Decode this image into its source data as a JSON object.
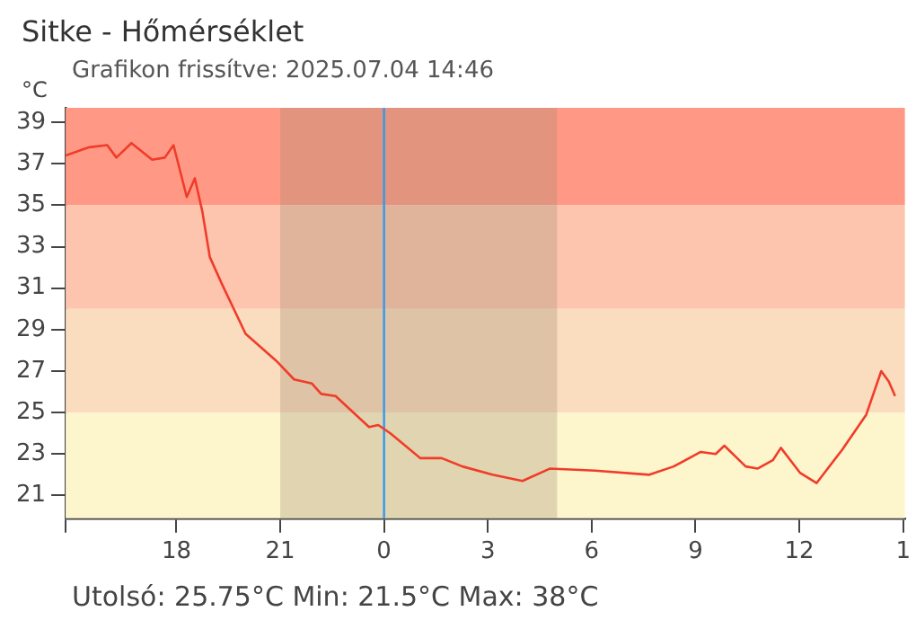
{
  "chart_data": {
    "type": "line",
    "title": "Sitke - Hőmérséklet",
    "subtitle": "Grafikon frissítve: 2025.07.04 14:46",
    "ylabel": "°C",
    "annotations": [
      "Utolsó: 25.75°C  Min: 21.5°C  Max: 38°C"
    ],
    "xlim": [
      "2025-07-03T14:48",
      "2025-07-04T15:03"
    ],
    "xticks": [
      {
        "value": "2025-07-03T14:48",
        "label": null
      },
      {
        "value": "2025-07-03T18:00",
        "label": "18"
      },
      {
        "value": "2025-07-03T21:00",
        "label": "21"
      },
      {
        "value": "2025-07-04T00:00",
        "label": "0"
      },
      {
        "value": "2025-07-04T03:00",
        "label": "3"
      },
      {
        "value": "2025-07-04T06:00",
        "label": "6"
      },
      {
        "value": "2025-07-04T09:00",
        "label": "9"
      },
      {
        "value": "2025-07-04T12:00",
        "label": "12"
      },
      {
        "value": "2025-07-04T15:00",
        "label": "1"
      }
    ],
    "ylim": [
      19.9,
      39.7
    ],
    "yticks": [
      21,
      23,
      25,
      27,
      29,
      31,
      33,
      35,
      37,
      39
    ],
    "grid": false,
    "legend": false,
    "marker": "none",
    "line_style": "solid",
    "bands": [
      {
        "axis": "y",
        "from": 35,
        "to": 39.7,
        "color": "#ff9985"
      },
      {
        "axis": "y",
        "from": 30,
        "to": 35,
        "color": "#fdc4ae"
      },
      {
        "axis": "y",
        "from": 25,
        "to": 30,
        "color": "#fadcbe"
      },
      {
        "axis": "y",
        "from": 19.9,
        "to": 25,
        "color": "#fdf5cc"
      },
      {
        "axis": "x",
        "from": "2025-07-03T21:00",
        "to": "2025-07-04T05:00",
        "color": "#a08a70"
      }
    ],
    "ref_lines": [
      {
        "axis": "x",
        "value": "2025-07-04T00:00",
        "color": "#3399ee"
      }
    ],
    "series": [
      {
        "color": "#f03c2a",
        "x": [
          "2025-07-03T14:48",
          "2025-07-03T15:29",
          "2025-07-03T16:00",
          "2025-07-03T16:16",
          "2025-07-03T16:42",
          "2025-07-03T17:18",
          "2025-07-03T17:40",
          "2025-07-03T17:55",
          "2025-07-03T18:18",
          "2025-07-03T18:32",
          "2025-07-03T18:45",
          "2025-07-03T18:58",
          "2025-07-03T19:19",
          "2025-07-03T20:00",
          "2025-07-03T20:53",
          "2025-07-03T21:24",
          "2025-07-03T21:55",
          "2025-07-03T22:11",
          "2025-07-03T22:36",
          "2025-07-03T23:34",
          "2025-07-03T23:50",
          "2025-07-04T00:11",
          "2025-07-04T01:03",
          "2025-07-04T01:40",
          "2025-07-04T02:16",
          "2025-07-04T03:08",
          "2025-07-04T04:00",
          "2025-07-04T04:48",
          "2025-07-04T06:06",
          "2025-07-04T07:40",
          "2025-07-04T08:22",
          "2025-07-04T09:09",
          "2025-07-04T09:35",
          "2025-07-04T09:50",
          "2025-07-04T10:27",
          "2025-07-04T10:48",
          "2025-07-04T11:14",
          "2025-07-04T11:28",
          "2025-07-04T12:01",
          "2025-07-04T12:30",
          "2025-07-04T13:14",
          "2025-07-04T13:56",
          "2025-07-04T14:22",
          "2025-07-04T14:35",
          "2025-07-04T14:46"
        ],
        "values": [
          37.4,
          37.8,
          37.9,
          37.3,
          38.0,
          37.2,
          37.3,
          37.9,
          35.4,
          36.3,
          34.7,
          32.5,
          31.2,
          28.8,
          27.5,
          26.6,
          26.4,
          25.9,
          25.8,
          24.3,
          24.4,
          24.0,
          22.8,
          22.8,
          22.4,
          22.0,
          21.7,
          22.3,
          22.2,
          22.0,
          22.4,
          23.1,
          23.0,
          23.4,
          22.4,
          22.3,
          22.7,
          23.3,
          22.1,
          21.6,
          23.2,
          24.9,
          27.0,
          26.5,
          25.8
        ]
      }
    ]
  }
}
